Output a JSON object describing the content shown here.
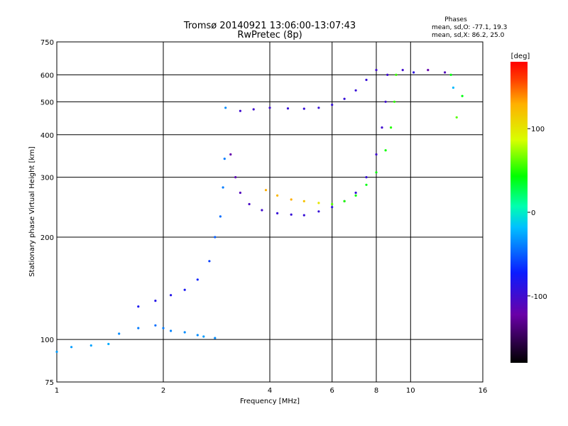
{
  "chart_data": {
    "type": "scatter",
    "title": "Tromsø 20140921 13:06:00-13:07:43",
    "subtitle": "RwPretec (8p)",
    "xlabel": "Frequency [MHz]",
    "ylabel": "Stationary phase Virtual Height [km]",
    "x_scale": "log",
    "y_scale": "log",
    "xlim": [
      1,
      16
    ],
    "ylim": [
      75,
      750
    ],
    "x_ticks": [
      1,
      2,
      4,
      6,
      8,
      10,
      16
    ],
    "y_ticks": [
      75,
      100,
      200,
      300,
      400,
      500,
      600,
      750
    ],
    "grid": true,
    "phases": {
      "heading": "Phases",
      "line_o": "mean, sd,O: -77.1, 19.3",
      "line_x": "mean, sd,X: 86.2, 25.0"
    },
    "colorbar": {
      "label": "[deg]",
      "range": [
        -180,
        180
      ],
      "ticks": [
        100,
        0,
        -100
      ]
    },
    "series": [
      {
        "values": [
          [
            1.0,
            92,
            -30
          ],
          [
            1.1,
            95,
            -30
          ],
          [
            1.25,
            96,
            -28
          ],
          [
            1.4,
            97,
            -25
          ],
          [
            1.5,
            104,
            -35
          ],
          [
            1.7,
            108,
            -40
          ],
          [
            1.9,
            110,
            -45
          ],
          [
            2.0,
            108,
            -40
          ],
          [
            2.1,
            106,
            -38
          ],
          [
            2.3,
            105,
            -35
          ],
          [
            2.5,
            103,
            -35
          ],
          [
            2.6,
            102,
            -30
          ],
          [
            2.8,
            101,
            -35
          ]
        ]
      },
      {
        "values": [
          [
            1.7,
            125,
            -80
          ],
          [
            1.9,
            130,
            -85
          ],
          [
            2.1,
            135,
            -85
          ],
          [
            2.3,
            140,
            -80
          ],
          [
            2.5,
            150,
            -70
          ],
          [
            2.7,
            170,
            -60
          ],
          [
            2.8,
            200,
            -50
          ],
          [
            2.9,
            230,
            -45
          ],
          [
            2.95,
            280,
            -40
          ],
          [
            2.98,
            340,
            -40
          ],
          [
            3.0,
            480,
            -35
          ]
        ]
      },
      {
        "values": [
          [
            3.1,
            350,
            -120
          ],
          [
            3.2,
            300,
            -115
          ],
          [
            3.3,
            270,
            -110
          ],
          [
            3.5,
            250,
            -105
          ],
          [
            3.8,
            240,
            -100
          ],
          [
            4.2,
            235,
            -95
          ],
          [
            4.6,
            233,
            -95
          ],
          [
            5.0,
            232,
            -95
          ],
          [
            5.5,
            238,
            -95
          ],
          [
            6.0,
            245,
            -90
          ],
          [
            6.5,
            255,
            -90
          ],
          [
            7.0,
            270,
            -95
          ],
          [
            7.5,
            300,
            -95
          ],
          [
            8.0,
            350,
            -100
          ],
          [
            8.3,
            420,
            -100
          ],
          [
            8.5,
            500,
            -100
          ],
          [
            8.6,
            600,
            -100
          ]
        ]
      },
      {
        "values": [
          [
            3.9,
            275,
            130
          ],
          [
            4.2,
            265,
            125
          ],
          [
            4.6,
            258,
            130
          ],
          [
            5.0,
            255,
            120
          ],
          [
            5.5,
            252,
            100
          ],
          [
            6.0,
            250,
            60
          ],
          [
            6.5,
            255,
            50
          ],
          [
            7.0,
            265,
            45
          ],
          [
            7.5,
            285,
            40
          ],
          [
            8.0,
            310,
            42
          ],
          [
            8.5,
            360,
            45
          ],
          [
            8.8,
            420,
            50
          ],
          [
            9.0,
            500,
            52
          ],
          [
            9.1,
            600,
            55
          ]
        ]
      },
      {
        "values": [
          [
            3.3,
            470,
            -100
          ],
          [
            3.6,
            475,
            -100
          ],
          [
            4.0,
            480,
            -100
          ],
          [
            4.5,
            478,
            -95
          ],
          [
            5.0,
            477,
            -95
          ],
          [
            5.5,
            480,
            -95
          ],
          [
            6.0,
            490,
            -95
          ],
          [
            6.5,
            510,
            -95
          ],
          [
            7.0,
            540,
            -95
          ],
          [
            7.5,
            580,
            -95
          ],
          [
            8.0,
            620,
            -100
          ]
        ]
      },
      {
        "values": [
          [
            9.5,
            620,
            -100
          ],
          [
            10.2,
            610,
            -90
          ],
          [
            11.2,
            620,
            -120
          ],
          [
            12.5,
            610,
            -110
          ],
          [
            13.0,
            600,
            40
          ],
          [
            13.2,
            550,
            -20
          ],
          [
            13.5,
            450,
            60
          ],
          [
            14.0,
            520,
            40
          ]
        ]
      }
    ]
  }
}
